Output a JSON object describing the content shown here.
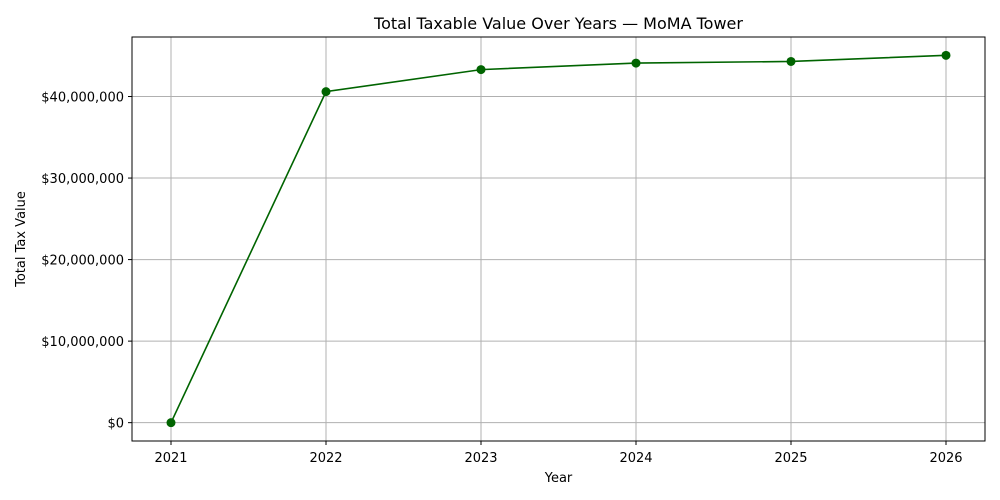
{
  "chart_data": {
    "type": "line",
    "title": "Total Taxable Value Over Years — MoMA Tower",
    "xlabel": "Year",
    "ylabel": "Total Tax Value",
    "x": [
      "2021",
      "2022",
      "2023",
      "2024",
      "2025",
      "2026"
    ],
    "series": [
      {
        "values": [
          0,
          40600000,
          43300000,
          44100000,
          44300000,
          45050000
        ]
      }
    ],
    "yticks": [
      0,
      10000000,
      20000000,
      30000000,
      40000000
    ],
    "ytick_labels": [
      "$0",
      "$10,000,000",
      "$20,000,000",
      "$30,000,000",
      "$40,000,000"
    ],
    "ylim": [
      -2250000,
      47300000
    ],
    "grid": true,
    "line_color": "#006400",
    "marker": "circle"
  }
}
